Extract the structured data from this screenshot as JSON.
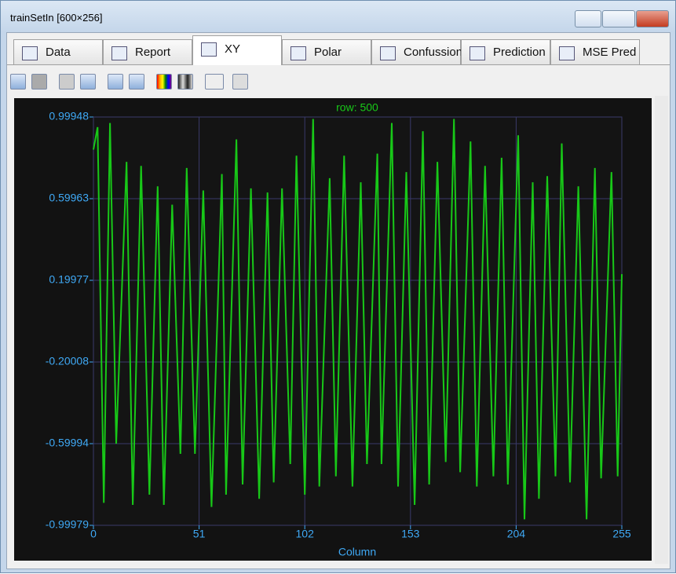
{
  "window": {
    "title": "trainSetIn [600×256]"
  },
  "tabs": [
    "Data",
    "Report",
    "XY",
    "Polar",
    "Confussion",
    "Prediction",
    "MSE Pred"
  ],
  "chart_data": {
    "type": "line",
    "title": "row: 500",
    "x_label": "Column",
    "color": "#18c818",
    "grid": true,
    "x": [
      0,
      2,
      5,
      8,
      11,
      16,
      19,
      23,
      27,
      31,
      34,
      38,
      42,
      45,
      49,
      53,
      57,
      62,
      64,
      69,
      72,
      76,
      80,
      84,
      87,
      91,
      95,
      98,
      102,
      106,
      109,
      114,
      117,
      121,
      125,
      129,
      132,
      137,
      139,
      144,
      147,
      151,
      155,
      159,
      162,
      166,
      170,
      174,
      177,
      182,
      185,
      189,
      193,
      197,
      200,
      205,
      208,
      212,
      215,
      219,
      223,
      226,
      230,
      234,
      238,
      242,
      245,
      250,
      253,
      255
    ],
    "values": [
      0.84,
      0.95,
      -0.89,
      0.97,
      -0.6,
      0.78,
      -0.9,
      0.76,
      -0.85,
      0.66,
      -0.9,
      0.57,
      -0.65,
      0.75,
      -0.65,
      0.64,
      -0.91,
      0.72,
      -0.85,
      0.89,
      -0.8,
      0.65,
      -0.87,
      0.63,
      -0.79,
      0.65,
      -0.7,
      0.81,
      -0.85,
      0.99,
      -0.81,
      0.7,
      -0.76,
      0.81,
      -0.81,
      0.68,
      -0.7,
      0.82,
      -0.7,
      0.97,
      -0.81,
      0.73,
      -0.9,
      0.93,
      -0.8,
      0.78,
      -0.69,
      0.99,
      -0.74,
      0.88,
      -0.81,
      0.76,
      -0.76,
      0.8,
      -0.8,
      0.91,
      -0.97,
      0.68,
      -0.87,
      0.71,
      -0.76,
      0.87,
      -0.79,
      0.66,
      -0.97,
      0.75,
      -0.77,
      0.73,
      -0.76,
      0.23
    ],
    "xlim": [
      0,
      255
    ],
    "xticks": [
      0,
      51,
      102,
      153,
      204,
      255
    ],
    "ylim": [
      -0.99979,
      0.99948
    ],
    "yticks": [
      -0.99979,
      -0.59994,
      -0.20008,
      0.19977,
      0.59963,
      0.99948
    ]
  }
}
